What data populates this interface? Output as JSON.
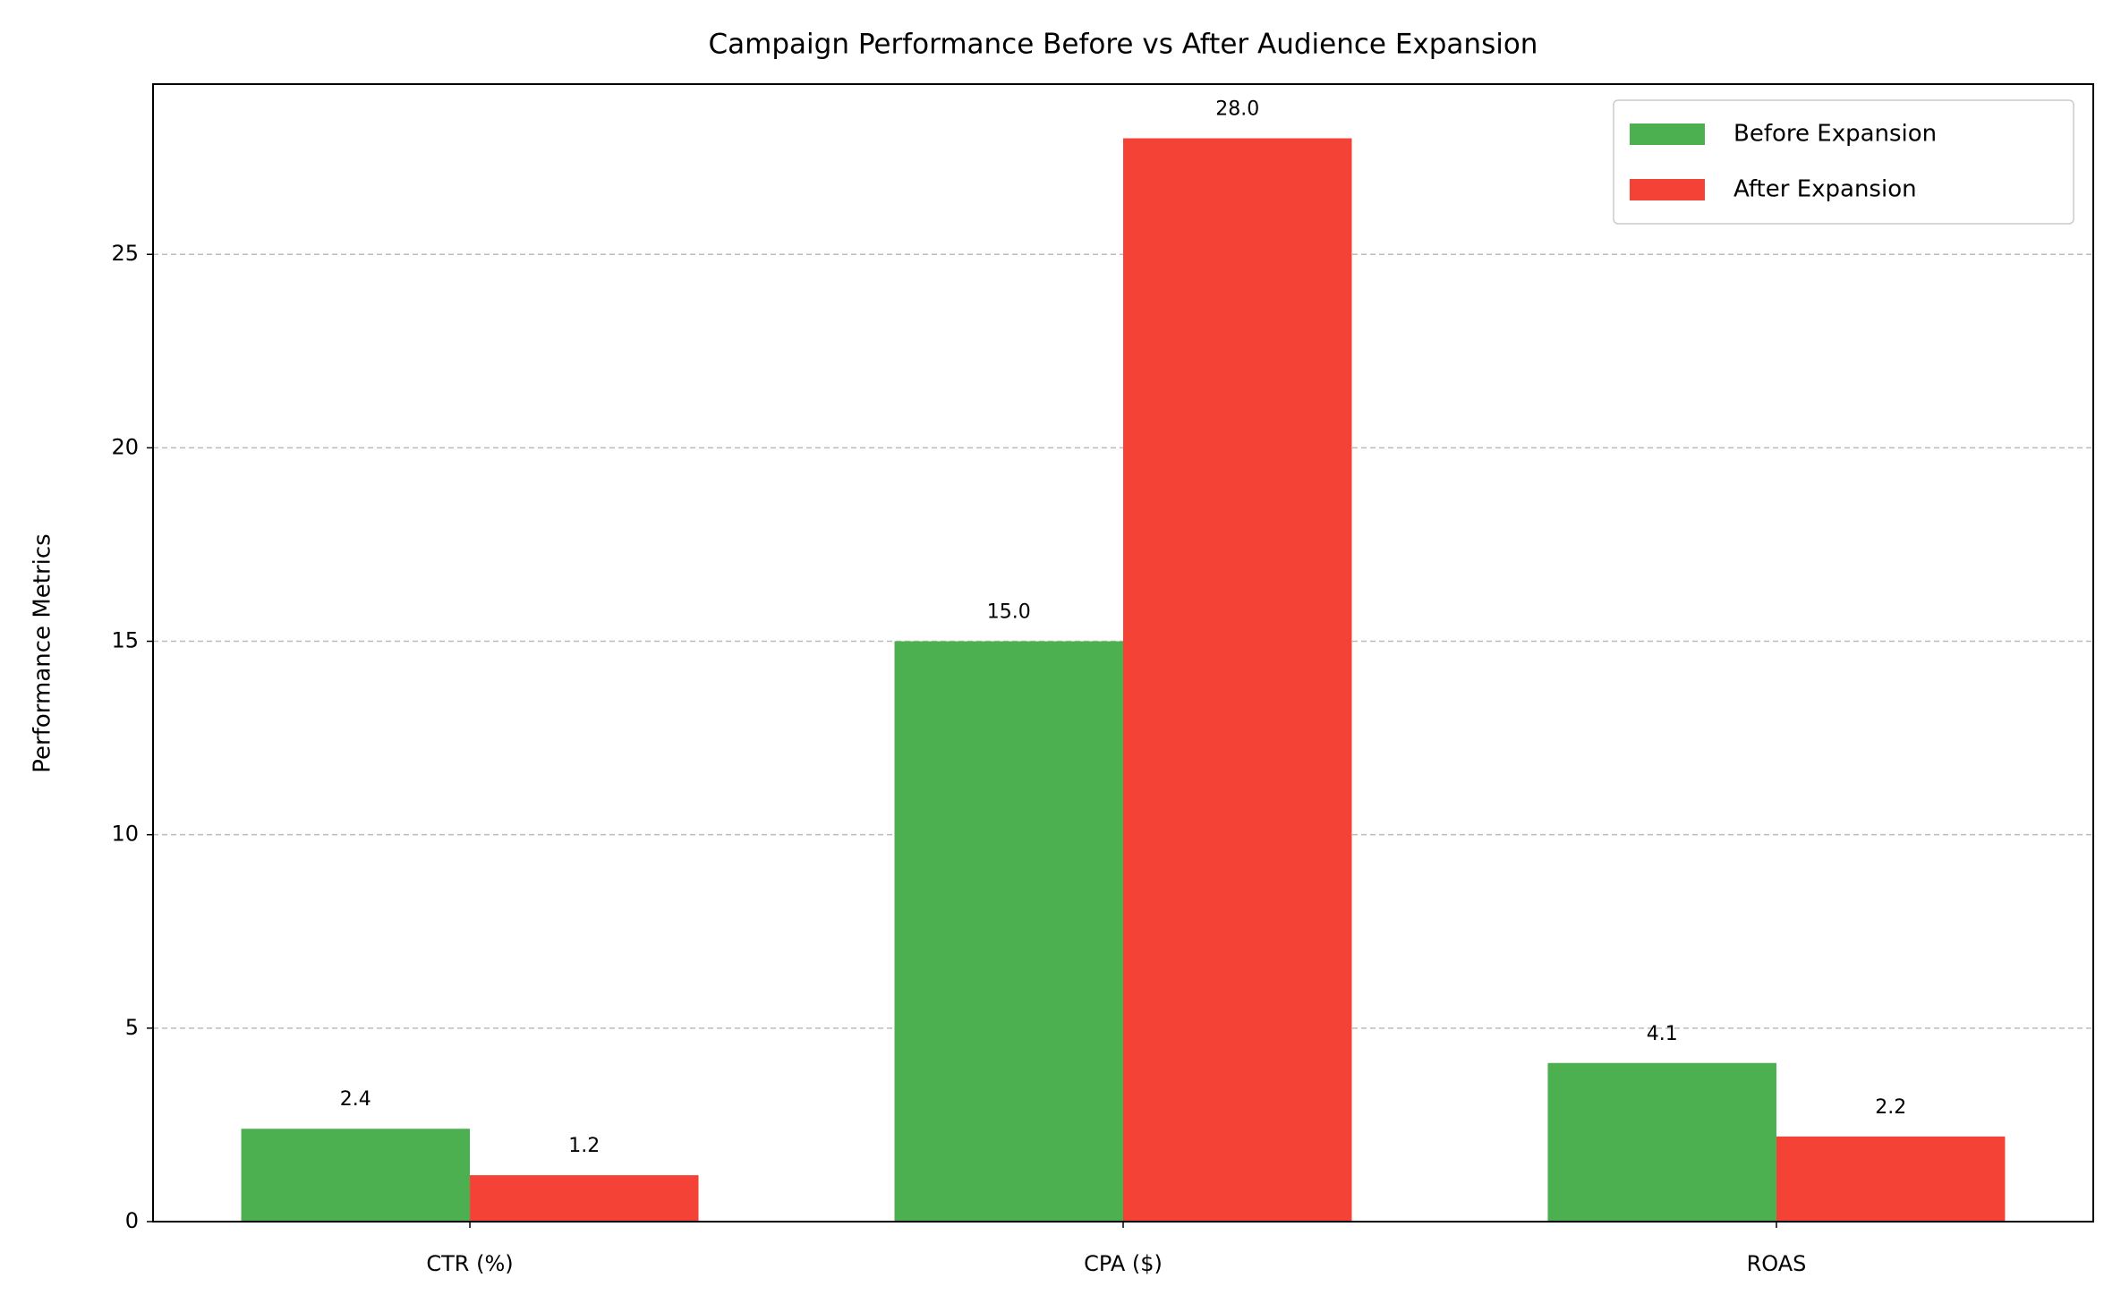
{
  "chart_data": {
    "type": "bar",
    "title": "Campaign Performance Before vs After Audience Expansion",
    "y_label": "Performance Metrics",
    "categories": [
      "CTR (%)",
      "CPA ($)",
      "ROAS"
    ],
    "series": [
      {
        "name": "Before Expansion",
        "color": "#4caf50",
        "values": [
          2.4,
          15,
          4.1
        ],
        "value_labels": [
          "2.4",
          "15.0",
          "4.1"
        ]
      },
      {
        "name": "After Expansion",
        "color": "#f44336",
        "values": [
          1.2,
          28,
          2.2
        ],
        "value_labels": [
          "1.2",
          "28.0",
          "2.2"
        ]
      }
    ],
    "ylim": [
      0,
      29.4
    ],
    "yticks": [
      0,
      5,
      10,
      15,
      20,
      25
    ],
    "grid": true,
    "legend": "upper right"
  }
}
